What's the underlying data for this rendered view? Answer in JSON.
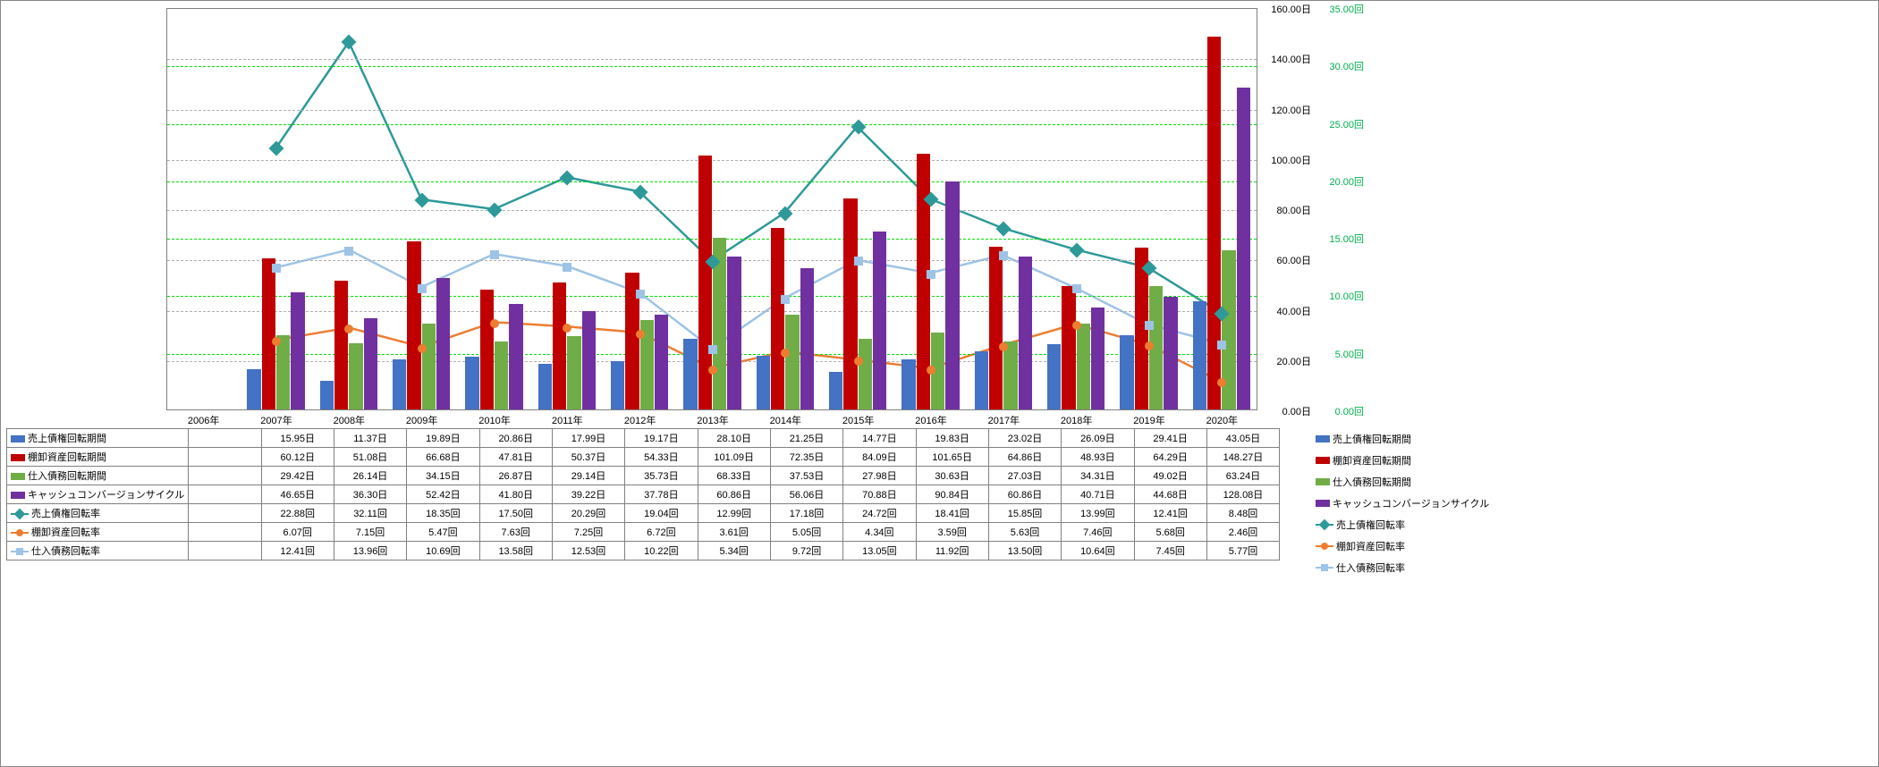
{
  "chart": {
    "type": "bar+line",
    "categories": [
      "2006年",
      "2007年",
      "2008年",
      "2009年",
      "2010年",
      "2011年",
      "2012年",
      "2013年",
      "2014年",
      "2015年",
      "2016年",
      "2017年",
      "2018年",
      "2019年",
      "2020年"
    ],
    "left_axis": {
      "unit": "日",
      "min": 0,
      "max": 160,
      "step": 20,
      "grid_color": "#808080",
      "color": "#000000"
    },
    "right_axis": {
      "unit": "回",
      "min": 0,
      "max": 35,
      "step": 5,
      "grid_color": "#00e000",
      "color": "#00b050"
    },
    "bar_group_width": 0.8,
    "bar_series": [
      {
        "key": "s1",
        "name": "売上債権回転期間",
        "color": "#4472c4",
        "unit": "日",
        "values": [
          null,
          15.95,
          11.37,
          19.89,
          20.86,
          17.99,
          19.17,
          28.1,
          21.25,
          14.77,
          19.83,
          23.02,
          26.09,
          29.41,
          43.05
        ]
      },
      {
        "key": "s2",
        "name": "棚卸資産回転期間",
        "color": "#c00000",
        "unit": "日",
        "values": [
          null,
          60.12,
          51.08,
          66.68,
          47.81,
          50.37,
          54.33,
          101.09,
          72.35,
          84.09,
          101.65,
          64.86,
          48.93,
          64.29,
          148.27
        ]
      },
      {
        "key": "s3",
        "name": "仕入債務回転期間",
        "color": "#70ad47",
        "unit": "日",
        "values": [
          null,
          29.42,
          26.14,
          34.15,
          26.87,
          29.14,
          35.73,
          68.33,
          37.53,
          27.98,
          30.63,
          27.03,
          34.31,
          49.02,
          63.24
        ]
      },
      {
        "key": "s4",
        "name": "キャッシュコンバージョンサイクル",
        "color": "#7030a0",
        "unit": "日",
        "values": [
          null,
          46.65,
          36.3,
          52.42,
          41.8,
          39.22,
          37.78,
          60.86,
          56.06,
          70.88,
          90.84,
          60.86,
          40.71,
          44.68,
          128.08
        ]
      }
    ],
    "line_series": [
      {
        "key": "s5",
        "name": "売上債権回転率",
        "color": "#2e9999",
        "marker": "diamond",
        "unit": "回",
        "values": [
          null,
          22.88,
          32.11,
          18.35,
          17.5,
          20.29,
          19.04,
          12.99,
          17.18,
          24.72,
          18.41,
          15.85,
          13.99,
          12.41,
          8.48
        ]
      },
      {
        "key": "s6",
        "name": "棚卸資産回転率",
        "color": "#ed7d31",
        "marker": "circle",
        "unit": "回",
        "values": [
          null,
          6.07,
          7.15,
          5.47,
          7.63,
          7.25,
          6.72,
          3.61,
          5.05,
          4.34,
          3.59,
          5.63,
          7.46,
          5.68,
          2.46
        ]
      },
      {
        "key": "s7",
        "name": "仕入債務回転率",
        "color": "#9dc3e6",
        "marker": "square",
        "unit": "回",
        "values": [
          null,
          12.41,
          13.96,
          10.69,
          13.58,
          12.53,
          10.22,
          5.34,
          9.72,
          13.05,
          11.92,
          13.5,
          10.64,
          7.45,
          5.77
        ]
      }
    ],
    "background_color": "#ffffff",
    "font_size": 11
  }
}
